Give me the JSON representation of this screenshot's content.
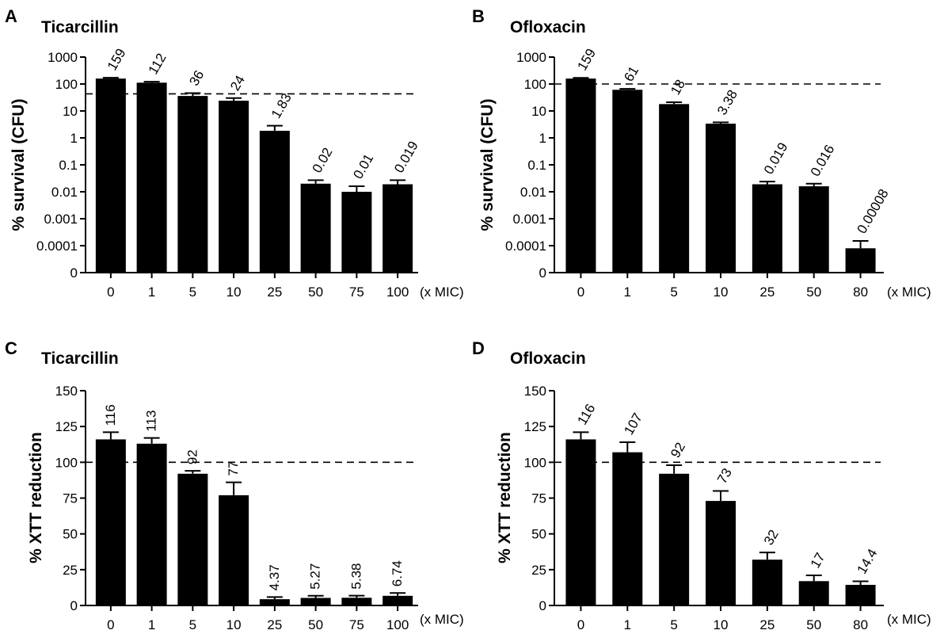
{
  "chart_data": [
    {
      "type": "bar",
      "panel": "A",
      "title": "Ticarcillin",
      "ylabel": "% survival (CFU)",
      "xlabel": "(x MIC)",
      "yscale": "log",
      "yticks": [
        "0",
        "0.0001",
        "0.001",
        "0.01",
        "0.1",
        "1",
        "10",
        "100",
        "1000"
      ],
      "categories": [
        "0",
        "1",
        "5",
        "10",
        "25",
        "50",
        "75",
        "100"
      ],
      "values": [
        159,
        112,
        36,
        24,
        1.83,
        0.02,
        0.01,
        0.019
      ],
      "value_labels": [
        "159",
        "112",
        "36",
        "24",
        "1.83",
        "0.02",
        "0.01",
        "0.019"
      ],
      "errors": [
        12,
        10,
        10,
        6,
        1.0,
        0.007,
        0.006,
        0.008
      ],
      "reference_line": 43,
      "label_rotation": -60
    },
    {
      "type": "bar",
      "panel": "B",
      "title": "Ofloxacin",
      "ylabel": "% survival (CFU)",
      "xlabel": "(x MIC)",
      "yscale": "log",
      "yticks": [
        "0",
        "0.0001",
        "0.001",
        "0.01",
        "0.1",
        "1",
        "10",
        "100",
        "1000"
      ],
      "categories": [
        "0",
        "1",
        "5",
        "10",
        "25",
        "50",
        "80"
      ],
      "values": [
        159,
        61,
        18,
        3.38,
        0.019,
        0.016,
        8e-05
      ],
      "value_labels": [
        "159",
        "61",
        "18",
        "3.38",
        "0.019",
        "0.016",
        "0.00008"
      ],
      "errors": [
        10,
        5,
        3,
        0.4,
        0.005,
        0.004,
        7e-05
      ],
      "reference_line": 100,
      "label_rotation": -60
    },
    {
      "type": "bar",
      "panel": "C",
      "title": "Ticarcillin",
      "ylabel": "% XTT reduction",
      "xlabel": "(x MIC)",
      "yscale": "linear",
      "ylim": [
        0,
        150
      ],
      "yticks": [
        "0",
        "25",
        "50",
        "75",
        "100",
        "125",
        "150"
      ],
      "categories": [
        "0",
        "1",
        "5",
        "10",
        "25",
        "50",
        "75",
        "100"
      ],
      "values": [
        116,
        113,
        92,
        77,
        4.37,
        5.27,
        5.38,
        6.74
      ],
      "value_labels": [
        "116",
        "113",
        "92",
        "77",
        "4.37",
        "5.27",
        "5.38",
        "6.74"
      ],
      "errors": [
        5,
        4,
        2,
        9,
        1.5,
        1.5,
        1.5,
        2
      ],
      "reference_line": 100,
      "label_rotation": -90
    },
    {
      "type": "bar",
      "panel": "D",
      "title": "Ofloxacin",
      "ylabel": "% XTT reduction",
      "xlabel": "(x MIC)",
      "yscale": "linear",
      "ylim": [
        0,
        150
      ],
      "yticks": [
        "0",
        "25",
        "50",
        "75",
        "100",
        "125",
        "150"
      ],
      "categories": [
        "0",
        "1",
        "5",
        "10",
        "25",
        "50",
        "80"
      ],
      "values": [
        116,
        107,
        92,
        73,
        32,
        17,
        14.4
      ],
      "value_labels": [
        "116",
        "107",
        "92",
        "73",
        "32",
        "17",
        "14.4"
      ],
      "errors": [
        5,
        7,
        6,
        7,
        5,
        4,
        2.5
      ],
      "reference_line": 100,
      "label_rotation": -60
    }
  ]
}
